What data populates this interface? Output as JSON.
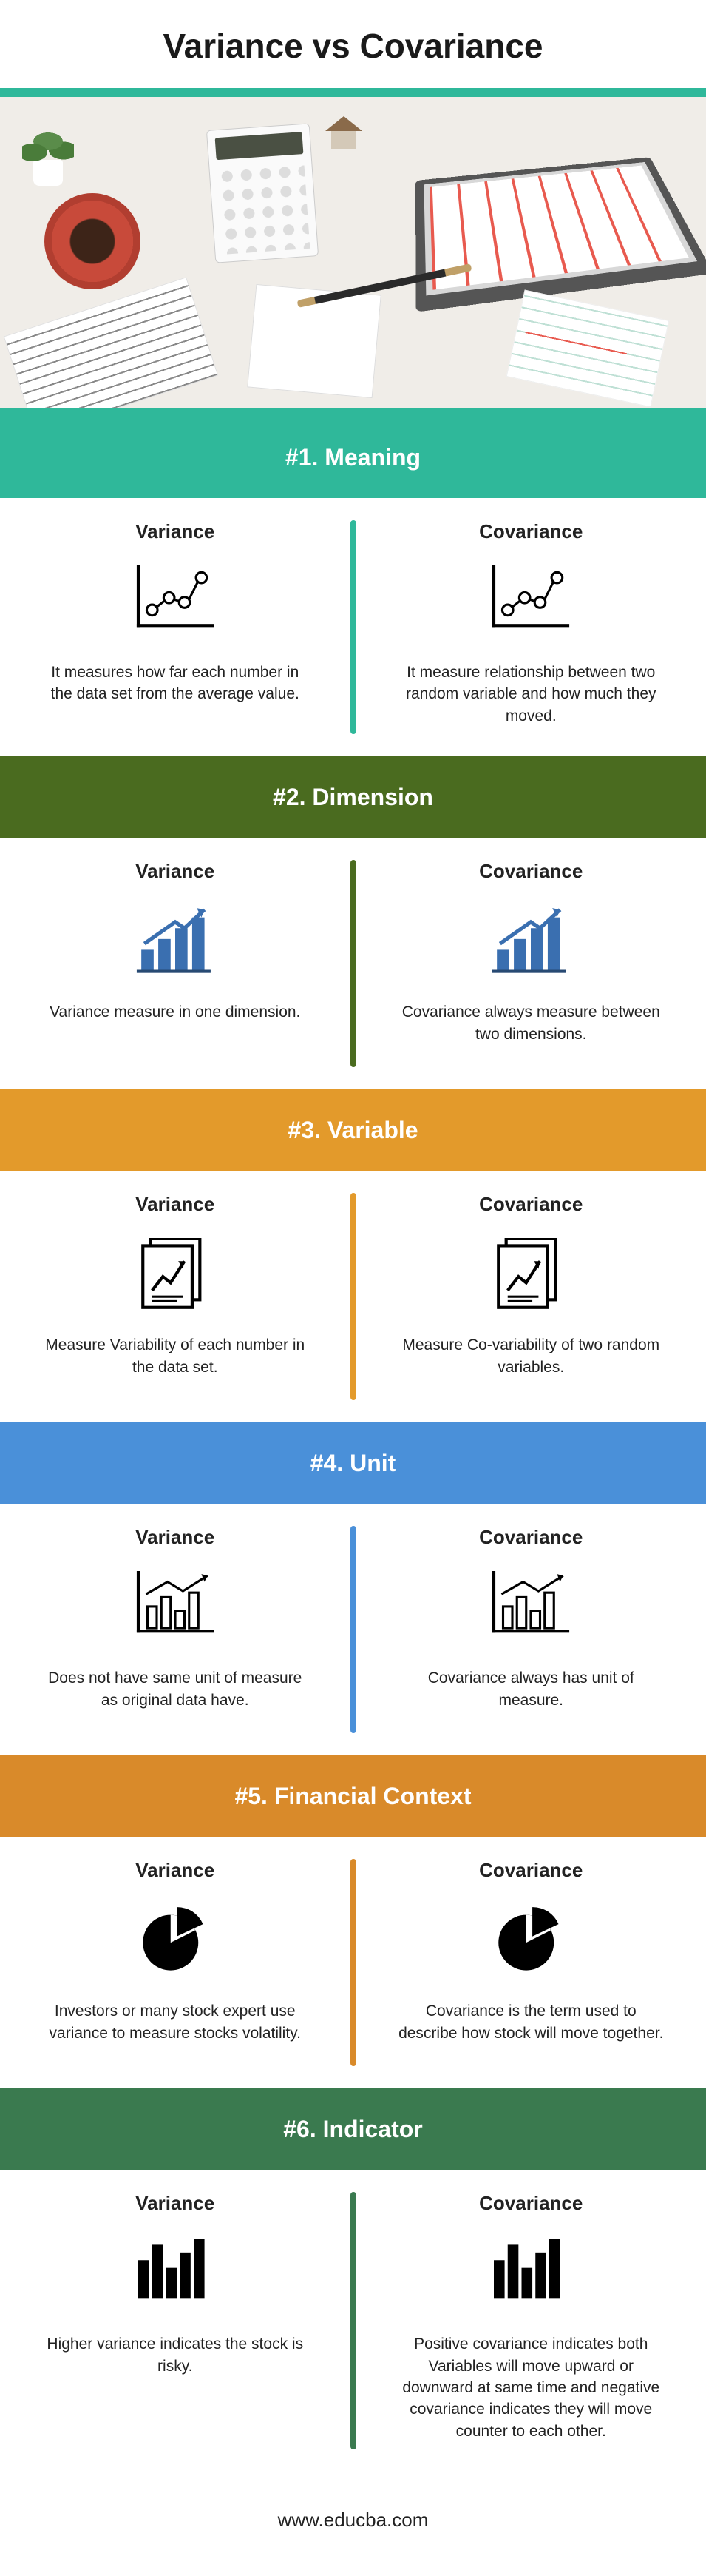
{
  "title": "Variance vs Covariance",
  "footer": "www.educba.com",
  "labels": {
    "variance": "Variance",
    "covariance": "Covariance"
  },
  "colors": {
    "teal": "#2fb89a",
    "darkgreen": "#4a6b1f",
    "orange": "#e39a2b",
    "blue": "#4a90d9",
    "orange2": "#d98a2a",
    "green2": "#3a7a4f"
  },
  "sections": [
    {
      "id": "meaning",
      "header": "#1. Meaning",
      "color": "#2fb89a",
      "icon": "scatter",
      "variance_text": "It measures how far each number in the data set from the average value.",
      "covariance_text": "It measure relationship between two random variable and how much they moved."
    },
    {
      "id": "dimension",
      "header": "#2. Dimension",
      "color": "#4a6b1f",
      "icon": "bars-arrow",
      "variance_text": "Variance measure in one dimension.",
      "covariance_text": "Covariance always measure between two dimensions."
    },
    {
      "id": "variable",
      "header": "#3. Variable",
      "color": "#e39a2b",
      "icon": "doc-chart",
      "variance_text": "Measure Variability of each number in the data set.",
      "covariance_text": "Measure Co-variability of two random variables."
    },
    {
      "id": "unit",
      "header": "#4. Unit",
      "color": "#4a90d9",
      "icon": "plain-bars",
      "variance_text": "Does not have same unit of measure as original data have.",
      "covariance_text": "Covariance always has unit of measure."
    },
    {
      "id": "financial",
      "header": "#5. Financial Context",
      "color": "#d98a2a",
      "icon": "pie",
      "variance_text": "Investors or many stock expert use variance to measure stocks volatility.",
      "covariance_text": "Covariance is the term used to describe how stock will move together."
    },
    {
      "id": "indicator",
      "header": "#6. Indicator",
      "color": "#3a7a4f",
      "icon": "solid-bars",
      "variance_text": "Higher variance indicates the stock is risky.",
      "covariance_text": "Positive covariance indicates both Variables will move upward or downward at same time and negative covariance indicates they will move counter to each other."
    }
  ]
}
